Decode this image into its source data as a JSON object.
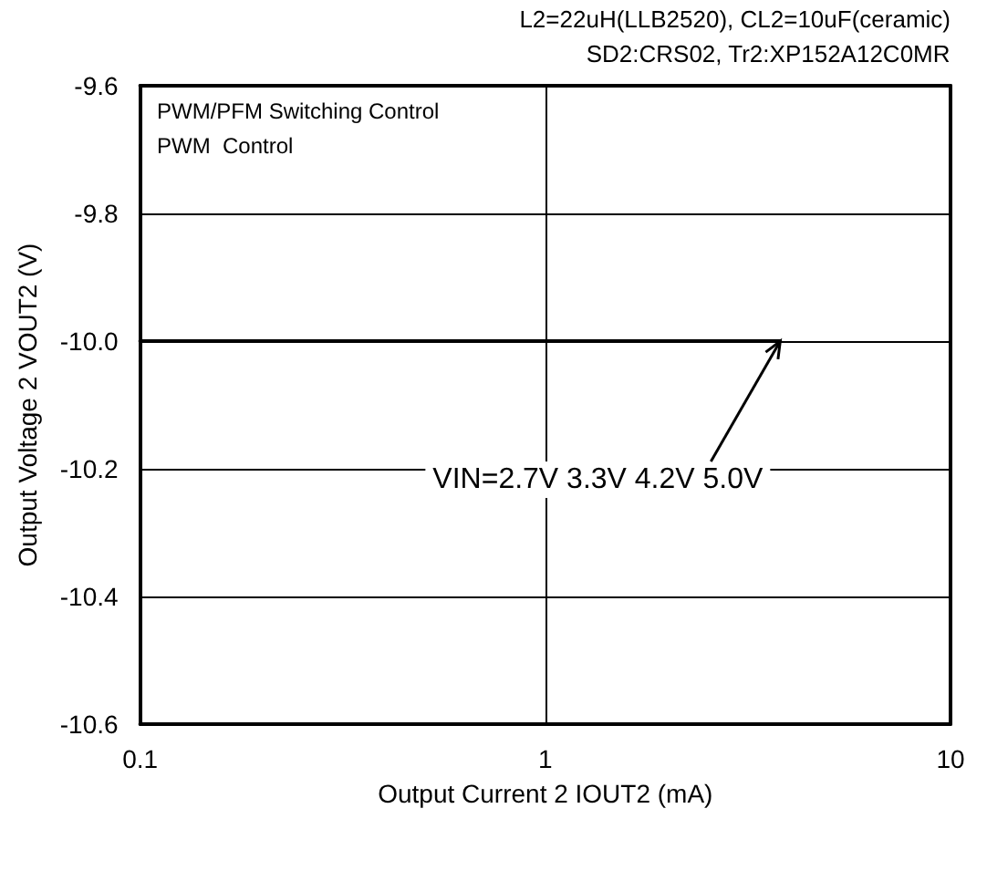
{
  "chart_data": {
    "type": "line",
    "xlabel": "Output Current 2 IOUT2 (mA)",
    "ylabel": "Output Voltage 2 VOUT2 (V)",
    "log": "x",
    "xlim": [
      0.1,
      10
    ],
    "xticks": [
      0.1,
      1,
      10
    ],
    "ylim": [
      -10.6,
      -9.6
    ],
    "yticks": [
      -10.6,
      -10.4,
      -10.2,
      {
        "value": -10,
        "label": "-10.0"
      },
      -9.8,
      -9.6
    ],
    "grid": true,
    "marker": "none",
    "line_style": "solid",
    "series": [
      {
        "color": "#000000",
        "x": [
          0.1,
          3.8
        ],
        "values": [
          -10.0,
          -10.0
        ]
      }
    ],
    "annotations": [
      "L2=22uH(LLB2520), CL2=10uF(ceramic)",
      "SD2:CRS02, Tr2:XP152A12C0MR",
      "PWM/PFM Switching Control",
      "PWM  Control",
      {
        "text": "VIN=2.7V 3.3V 4.2V 5.0V",
        "x": 3.8,
        "y": -10.0
      }
    ]
  }
}
